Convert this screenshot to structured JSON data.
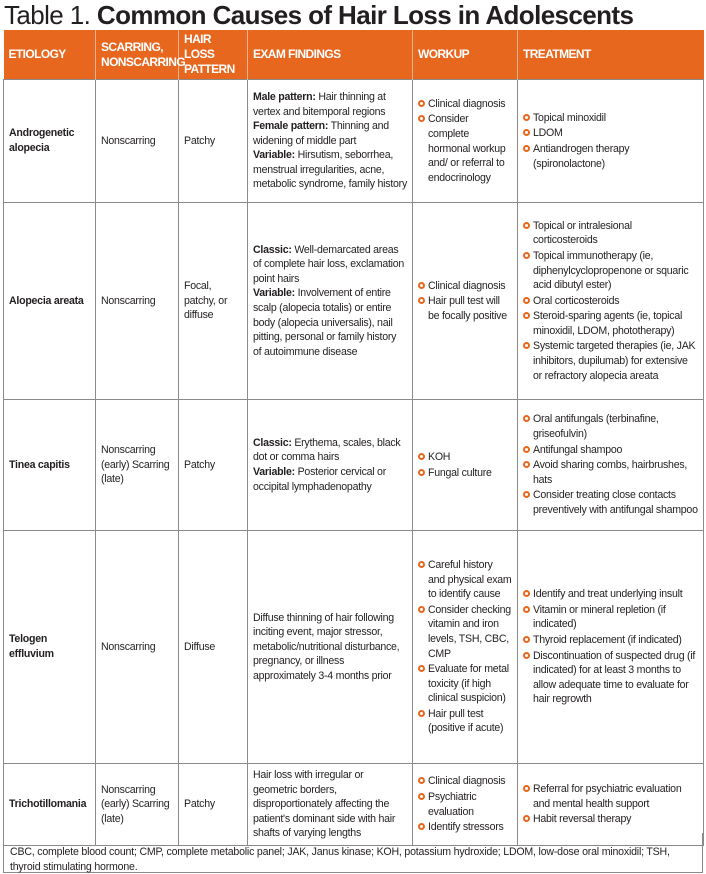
{
  "title": {
    "label": "Table 1.",
    "text": "Common Causes of Hair Loss in Adolescents"
  },
  "accent_color": "#e8671f",
  "headers": [
    "ETIOLOGY",
    "SCARRING, NONSCARRING",
    "HAIR LOSS PATTERN",
    "EXAM FINDINGS",
    "WORKUP",
    "TREATMENT"
  ],
  "rows": [
    {
      "etiology": "Androgenetic alopecia",
      "scarring": "Nonscarring",
      "pattern": "Patchy",
      "findings": [
        {
          "b": "Male pattern:",
          "t": " Hair thinning at vertex and bitemporal regions"
        },
        {
          "b": "Female pattern:",
          "t": " Thinning and widening of middle part"
        },
        {
          "b": "Variable:",
          "t": " Hirsutism, seborrhea, menstrual irregularities, acne, metabolic syndrome, family history"
        }
      ],
      "workup": [
        "Clinical diagnosis",
        "Consider complete hormonal workup and/ or referral to endocrinology"
      ],
      "treatment": [
        "Topical minoxidil",
        "LDOM",
        "Antiandrogen therapy (spironolactone)"
      ]
    },
    {
      "etiology": "Alopecia areata",
      "scarring": "Nonscarring",
      "pattern": "Focal, patchy, or diffuse",
      "findings": [
        {
          "b": "Classic:",
          "t": " Well-demarcated areas of complete hair loss, exclamation point hairs"
        },
        {
          "b": "Variable:",
          "t": " Involvement of entire scalp (alopecia totalis) or entire body (alopecia universalis), nail pitting, personal or family history of autoimmune disease"
        }
      ],
      "workup": [
        "Clinical diagnosis",
        "Hair pull test will be focally positive"
      ],
      "treatment": [
        "Topical or intralesional corticosteroids",
        "Topical immunotherapy (ie, diphenylcyclopropenone or squaric acid dibutyl ester)",
        "Oral corticosteroids",
        "Steroid-sparing agents (ie, topical minoxidil, LDOM, phototherapy)",
        "Systemic targeted therapies (ie, JAK inhibitors, dupilumab) for extensive or refractory alopecia areata"
      ]
    },
    {
      "etiology": "Tinea capitis",
      "scarring": "Nonscarring (early) Scarring (late)",
      "pattern": "Patchy",
      "findings": [
        {
          "b": "Classic:",
          "t": " Erythema, scales, black dot or comma hairs"
        },
        {
          "b": "Variable:",
          "t": " Posterior cervical or occipital lymphadenopathy"
        }
      ],
      "workup": [
        "KOH",
        "Fungal culture"
      ],
      "treatment": [
        "Oral antifungals (terbinafine, griseofulvin)",
        "Antifungal shampoo",
        "Avoid sharing combs, hairbrushes, hats",
        "Consider treating close contacts preventively with antifungal shampoo"
      ]
    },
    {
      "etiology": "Telogen effluvium",
      "scarring": "Nonscarring",
      "pattern": "Diffuse",
      "findings": [
        {
          "b": "",
          "t": "Diffuse thinning of hair following inciting event, major stressor, metabolic/nutritional disturbance, pregnancy, or illness approximately 3-4 months prior"
        }
      ],
      "workup": [
        "Careful history and physical exam to identify cause",
        "Consider checking vitamin and iron levels, TSH, CBC, CMP",
        "Evaluate for metal toxicity (if high clinical suspicion)",
        "Hair pull test (positive if acute)"
      ],
      "treatment": [
        "Identify and treat underlying insult",
        "Vitamin or mineral repletion (if indicated)",
        "Thyroid replacement (if indicated)",
        "Discontinuation of suspected drug (if indicated) for at least 3 months to allow adequate time to evaluate for hair regrowth"
      ]
    },
    {
      "etiology": "Trichotillomania",
      "scarring": "Nonscarring (early) Scarring (late)",
      "pattern": "Patchy",
      "findings": [
        {
          "b": "",
          "t": "Hair loss with irregular or geometric borders, disproportionately affecting the patient's dominant side with hair shafts of varying lengths"
        }
      ],
      "workup": [
        "Clinical diagnosis",
        "Psychiatric evaluation",
        "Identify stressors"
      ],
      "treatment": [
        "Referral for psychiatric evaluation and mental health support",
        "Habit reversal therapy"
      ]
    }
  ],
  "footnote": "CBC, complete blood count; CMP, complete metabolic panel; JAK, Janus kinase; KOH, potassium hydroxide; LDOM, low-dose oral minoxidil; TSH, thyroid stimulating hormone."
}
